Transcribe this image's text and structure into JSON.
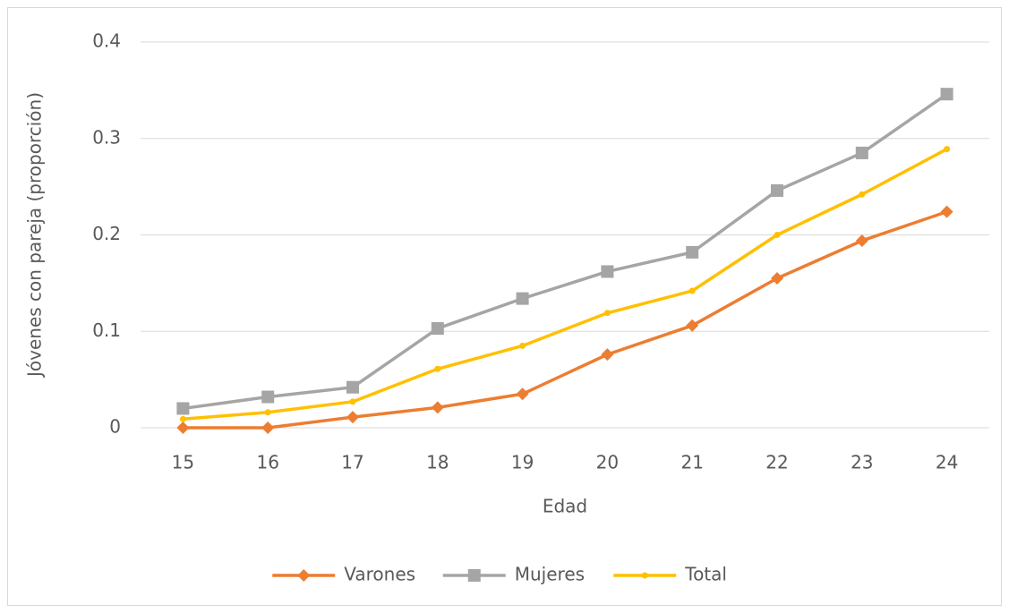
{
  "chart_data": {
    "type": "line",
    "x_label": "Edad",
    "y_label": "Jóvenes con pareja (proporción)",
    "categories": [
      "15",
      "16",
      "17",
      "18",
      "19",
      "20",
      "21",
      "22",
      "23",
      "24"
    ],
    "series": [
      {
        "name": "Varones",
        "color": "#ED7D31",
        "marker": "diamond",
        "values": [
          0,
          0,
          0.011,
          0.021,
          0.035,
          0.076,
          0.106,
          0.155,
          0.194,
          0.224
        ]
      },
      {
        "name": "Mujeres",
        "color": "#A5A5A5",
        "marker": "square",
        "values": [
          0.02,
          0.032,
          0.042,
          0.103,
          0.134,
          0.162,
          0.182,
          0.246,
          0.285,
          0.346
        ]
      },
      {
        "name": "Total",
        "color": "#FFC000",
        "marker": "circle",
        "values": [
          0.009,
          0.016,
          0.027,
          0.061,
          0.085,
          0.119,
          0.142,
          0.2,
          0.242,
          0.289
        ]
      }
    ],
    "ylim": [
      0,
      0.4
    ],
    "yticks": [
      0,
      0.1,
      0.2,
      0.3,
      0.4
    ],
    "grid": true,
    "legend": "bottom"
  }
}
